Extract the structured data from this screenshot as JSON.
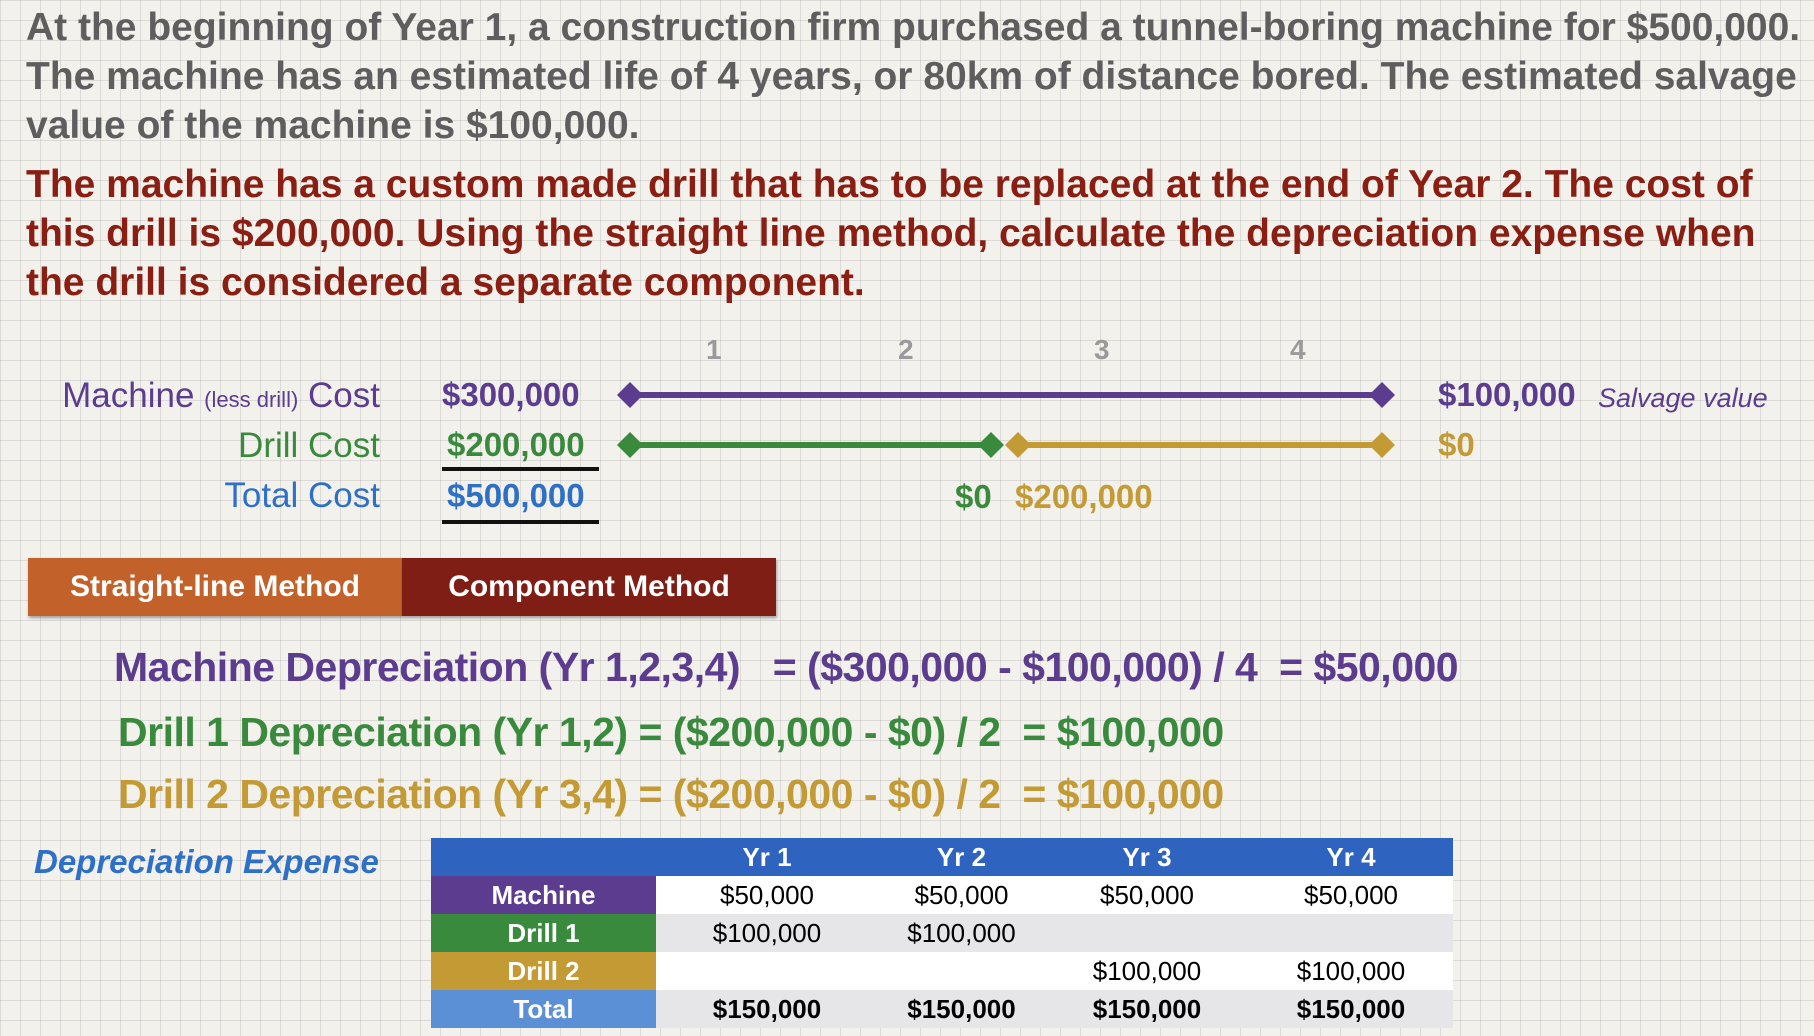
{
  "problem": {
    "text": "At the beginning of Year 1, a construction firm purchased a tunnel-boring machine for $500,000.  The machine has an estimated life of 4 years, or 80km of distance bored.  The estimated salvage value of the machine is $100,000.",
    "task": "The machine has a custom made drill that has to be replaced at the end of Year 2. The cost of this drill is $200,000.  Using the straight line method, calculate the depreciation expense when the drill is considered a separate component."
  },
  "timeline": {
    "years": [
      "1",
      "2",
      "3",
      "4"
    ],
    "machine": {
      "label": "Machine",
      "label_small": "(less drill)",
      "label_end": "Cost",
      "cost": "$300,000",
      "salvage": "$100,000",
      "salvage_note": "Salvage value",
      "color": "#5c3c8f"
    },
    "drill": {
      "label": "Drill Cost",
      "cost": "$200,000",
      "end": "$0",
      "color": "#3a8a3e"
    },
    "drill2": {
      "start": "$200,000",
      "end": "$0",
      "color": "#c39a34"
    },
    "drill_mid_end": "$0",
    "total": {
      "label": "Total Cost",
      "cost": "$500,000",
      "color": "#2e6fc8"
    }
  },
  "tabs": {
    "straight_line": "Straight-line Method",
    "component": "Component Method"
  },
  "equations": {
    "machine": "Machine Depreciation (Yr 1,2,3,4)   = ($300,000 - $100,000) / 4  = $50,000",
    "drill1": "Drill 1 Depreciation (Yr 1,2) = ($200,000 - $0) / 2  = $100,000",
    "drill2": "Drill 2 Depreciation (Yr 3,4) = ($200,000 - $0) / 2  = $100,000"
  },
  "table": {
    "title": "Depreciation Expense",
    "headers": [
      "Yr 1",
      "Yr 2",
      "Yr 3",
      "Yr 4"
    ],
    "rows": [
      {
        "label": "Machine",
        "color": "#5c3c8f",
        "values": [
          "$50,000",
          "$50,000",
          "$50,000",
          "$50,000"
        ]
      },
      {
        "label": "Drill 1",
        "color": "#3a8a3e",
        "values": [
          "$100,000",
          "$100,000",
          "",
          ""
        ]
      },
      {
        "label": "Drill 2",
        "color": "#c39a34",
        "values": [
          "",
          "",
          "$100,000",
          "$100,000"
        ]
      },
      {
        "label": "Total",
        "color": "#5b8fd6",
        "values": [
          "$150,000",
          "$150,000",
          "$150,000",
          "$150,000"
        ]
      }
    ]
  }
}
